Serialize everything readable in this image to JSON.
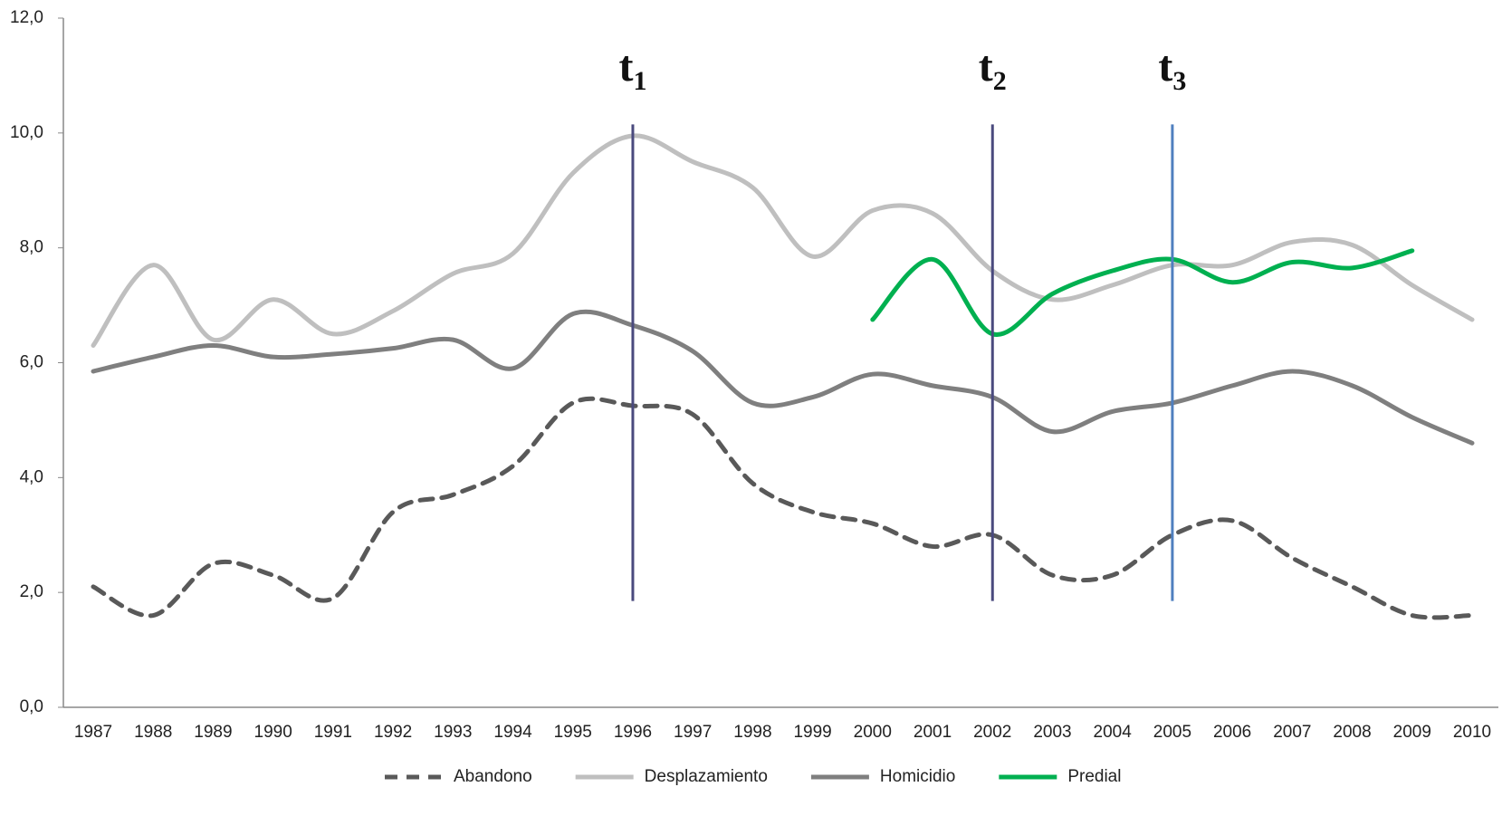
{
  "chart_data": {
    "type": "line",
    "categories": [
      "1987",
      "1988",
      "1989",
      "1990",
      "1991",
      "1992",
      "1993",
      "1994",
      "1995",
      "1996",
      "1997",
      "1998",
      "1999",
      "2000",
      "2001",
      "2002",
      "2003",
      "2004",
      "2005",
      "2006",
      "2007",
      "2008",
      "2009",
      "2010"
    ],
    "series": [
      {
        "name": "Abandono",
        "color": "#595959",
        "dash": "dashed",
        "values": [
          2.1,
          1.6,
          2.5,
          2.3,
          1.9,
          3.4,
          3.7,
          4.2,
          5.3,
          5.25,
          5.1,
          3.9,
          3.4,
          3.2,
          2.8,
          3.0,
          2.3,
          2.3,
          3.0,
          3.25,
          2.6,
          2.1,
          1.6,
          1.6
        ]
      },
      {
        "name": "Desplazamiento",
        "color": "#bfbfbf",
        "values": [
          6.3,
          7.7,
          6.4,
          7.1,
          6.5,
          6.9,
          7.55,
          7.9,
          9.3,
          9.95,
          9.5,
          9.05,
          7.85,
          8.65,
          8.6,
          7.6,
          7.1,
          7.35,
          7.7,
          7.7,
          8.1,
          8.05,
          7.35,
          6.75
        ]
      },
      {
        "name": "Homicidio",
        "color": "#7f7f7f",
        "values": [
          5.85,
          6.1,
          6.3,
          6.1,
          6.15,
          6.25,
          6.4,
          5.9,
          6.85,
          6.65,
          6.2,
          5.3,
          5.4,
          5.8,
          5.6,
          5.4,
          4.8,
          5.15,
          5.3,
          5.6,
          5.85,
          5.6,
          5.05,
          4.6
        ]
      },
      {
        "name": "Predial",
        "color": "#00b050",
        "values": [
          null,
          null,
          null,
          null,
          null,
          null,
          null,
          null,
          null,
          null,
          null,
          null,
          null,
          6.75,
          7.8,
          6.5,
          7.2,
          7.6,
          7.8,
          7.4,
          7.75,
          7.65,
          7.95,
          null
        ]
      }
    ],
    "ylim": [
      0,
      12
    ],
    "yticks": [
      {
        "value": 0,
        "label": "0,0"
      },
      {
        "value": 2,
        "label": "2,0"
      },
      {
        "value": 4,
        "label": "4,0"
      },
      {
        "value": 6,
        "label": "6,0"
      },
      {
        "value": 8,
        "label": "8,0"
      },
      {
        "value": 10,
        "label": "10,0"
      },
      {
        "value": 12,
        "label": "12,0"
      }
    ],
    "grid": false,
    "legend": "bottom",
    "annotations": [
      {
        "text": "t",
        "subscript": "1",
        "at": "1996",
        "color": "#4a4a7e"
      },
      {
        "text": "t",
        "subscript": "2",
        "at": "2002",
        "color": "#4a4a7e"
      },
      {
        "text": "t",
        "subscript": "3",
        "at": "2005",
        "color": "#4f7fbf"
      }
    ]
  }
}
